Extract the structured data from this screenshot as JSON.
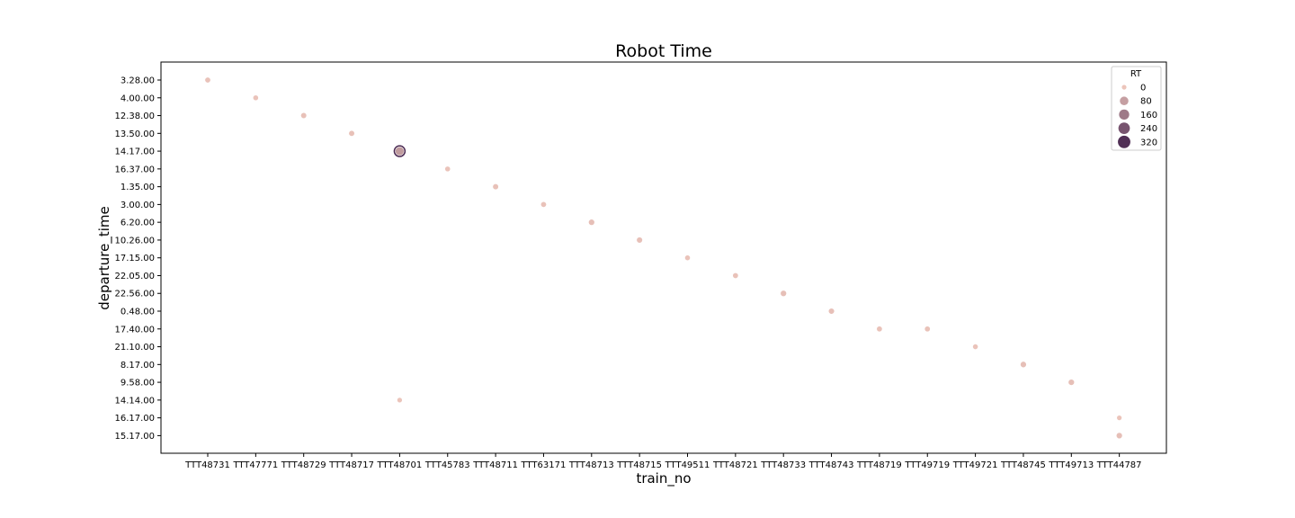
{
  "chart_data": {
    "type": "scatter",
    "title": "Robot Time",
    "xlabel": "train_no",
    "ylabel": "departure_time",
    "x_categories": [
      "TTT48731",
      "TTT47771",
      "TTT48729",
      "TTT48717",
      "TTT48701",
      "TTT45783",
      "TTT48711",
      "TTT63171",
      "TTT48713",
      "TTT48715",
      "TTT49511",
      "TTT48721",
      "TTT48733",
      "TTT48743",
      "TTT48719",
      "TTT49719",
      "TTT49721",
      "TTT48745",
      "TTT49713",
      "TTT44787"
    ],
    "y_categories": [
      "3.28.00",
      "4.00.00",
      "12.38.00",
      "13.50.00",
      "14.17.00",
      "16.37.00",
      "1.35.00",
      "3.00.00",
      "6.20.00",
      "10.26.00",
      "17.15.00",
      "22.05.00",
      "22.56.00",
      "0.48.00",
      "17.40.00",
      "21.10.00",
      "8.17.00",
      "9.58.00",
      "14.14.00",
      "16.17.00",
      "15.17.00"
    ],
    "points": [
      {
        "x": "TTT48731",
        "y": "3.28.00",
        "RT": 6
      },
      {
        "x": "TTT47771",
        "y": "4.00.00",
        "RT": 4
      },
      {
        "x": "TTT48729",
        "y": "12.38.00",
        "RT": 8
      },
      {
        "x": "TTT48717",
        "y": "13.50.00",
        "RT": 8
      },
      {
        "x": "TTT48701",
        "y": "14.17.00",
        "RT": 90
      },
      {
        "x": "TTT48701",
        "y": "14.17.00",
        "RT": 330
      },
      {
        "x": "TTT45783",
        "y": "16.37.00",
        "RT": 4
      },
      {
        "x": "TTT48711",
        "y": "1.35.00",
        "RT": 8
      },
      {
        "x": "TTT63171",
        "y": "3.00.00",
        "RT": 6
      },
      {
        "x": "TTT48713",
        "y": "6.20.00",
        "RT": 12
      },
      {
        "x": "TTT48715",
        "y": "10.26.00",
        "RT": 10
      },
      {
        "x": "TTT49511",
        "y": "17.15.00",
        "RT": 4
      },
      {
        "x": "TTT48721",
        "y": "22.05.00",
        "RT": 6
      },
      {
        "x": "TTT48733",
        "y": "22.56.00",
        "RT": 12
      },
      {
        "x": "TTT48743",
        "y": "0.48.00",
        "RT": 10
      },
      {
        "x": "TTT48719",
        "y": "17.40.00",
        "RT": 6
      },
      {
        "x": "TTT49719",
        "y": "17.40.00",
        "RT": 6
      },
      {
        "x": "TTT49721",
        "y": "21.10.00",
        "RT": 4
      },
      {
        "x": "TTT48745",
        "y": "8.17.00",
        "RT": 12
      },
      {
        "x": "TTT49713",
        "y": "9.58.00",
        "RT": 12
      },
      {
        "x": "TTT48701",
        "y": "14.14.00",
        "RT": 2
      },
      {
        "x": "TTT44787",
        "y": "16.17.00",
        "RT": 2
      },
      {
        "x": "TTT44787",
        "y": "15.17.00",
        "RT": 12
      }
    ],
    "hue_size_variable": "RT",
    "legend": {
      "title": "RT",
      "placement": "top-right",
      "entries": [
        {
          "label": "0",
          "value": 0
        },
        {
          "label": "80",
          "value": 80
        },
        {
          "label": "160",
          "value": 160
        },
        {
          "label": "240",
          "value": 240
        },
        {
          "label": "320",
          "value": 320
        }
      ]
    },
    "rt_range": [
      0,
      330
    ],
    "color_low": "#ecc5bb",
    "color_high": "#4b2a52",
    "grid": false
  }
}
